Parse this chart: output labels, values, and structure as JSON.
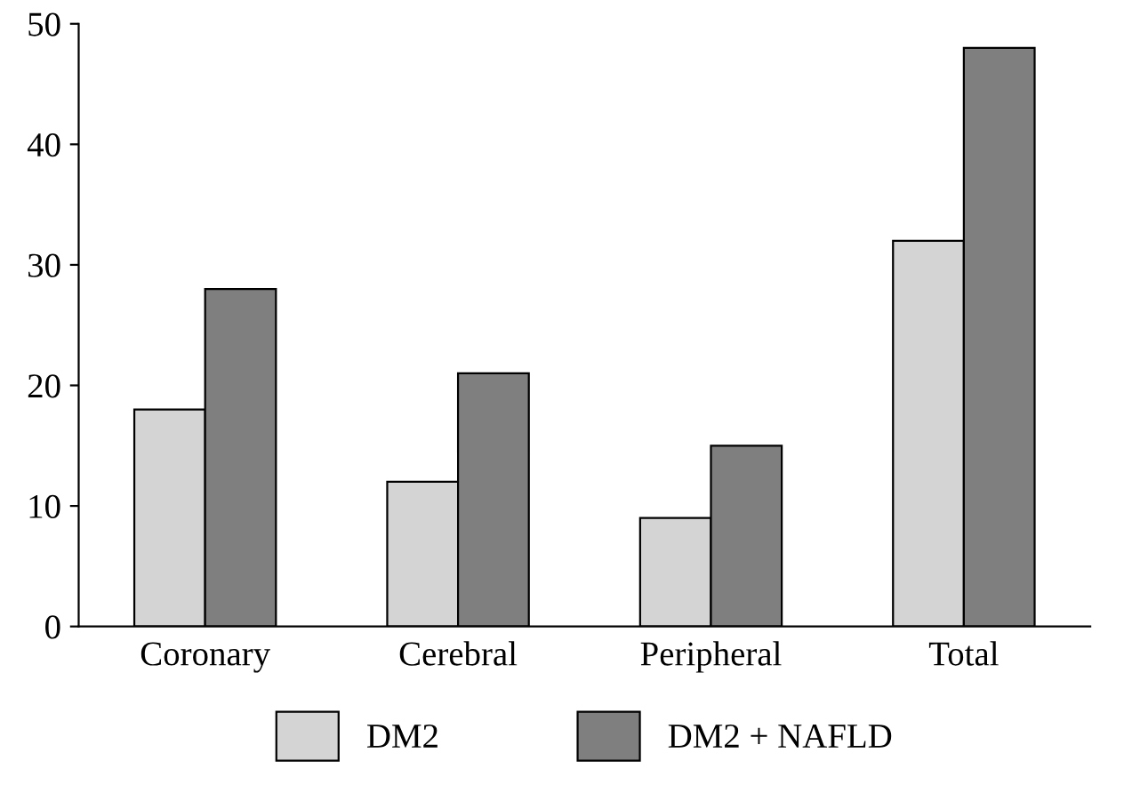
{
  "chart_data": {
    "type": "bar",
    "categories": [
      "Coronary",
      "Cerebral",
      "Peripheral",
      "Total"
    ],
    "series": [
      {
        "name": "DM2",
        "color": "#d4d4d4",
        "values": [
          18,
          12,
          9,
          32
        ]
      },
      {
        "name": "DM2 + NAFLD",
        "color": "#7f7f80",
        "values": [
          28,
          21,
          15,
          48
        ]
      }
    ],
    "ylim": [
      0,
      50
    ],
    "yticks": [
      0,
      10,
      20,
      30,
      40,
      50
    ],
    "grid": false,
    "legend": "bottom"
  }
}
